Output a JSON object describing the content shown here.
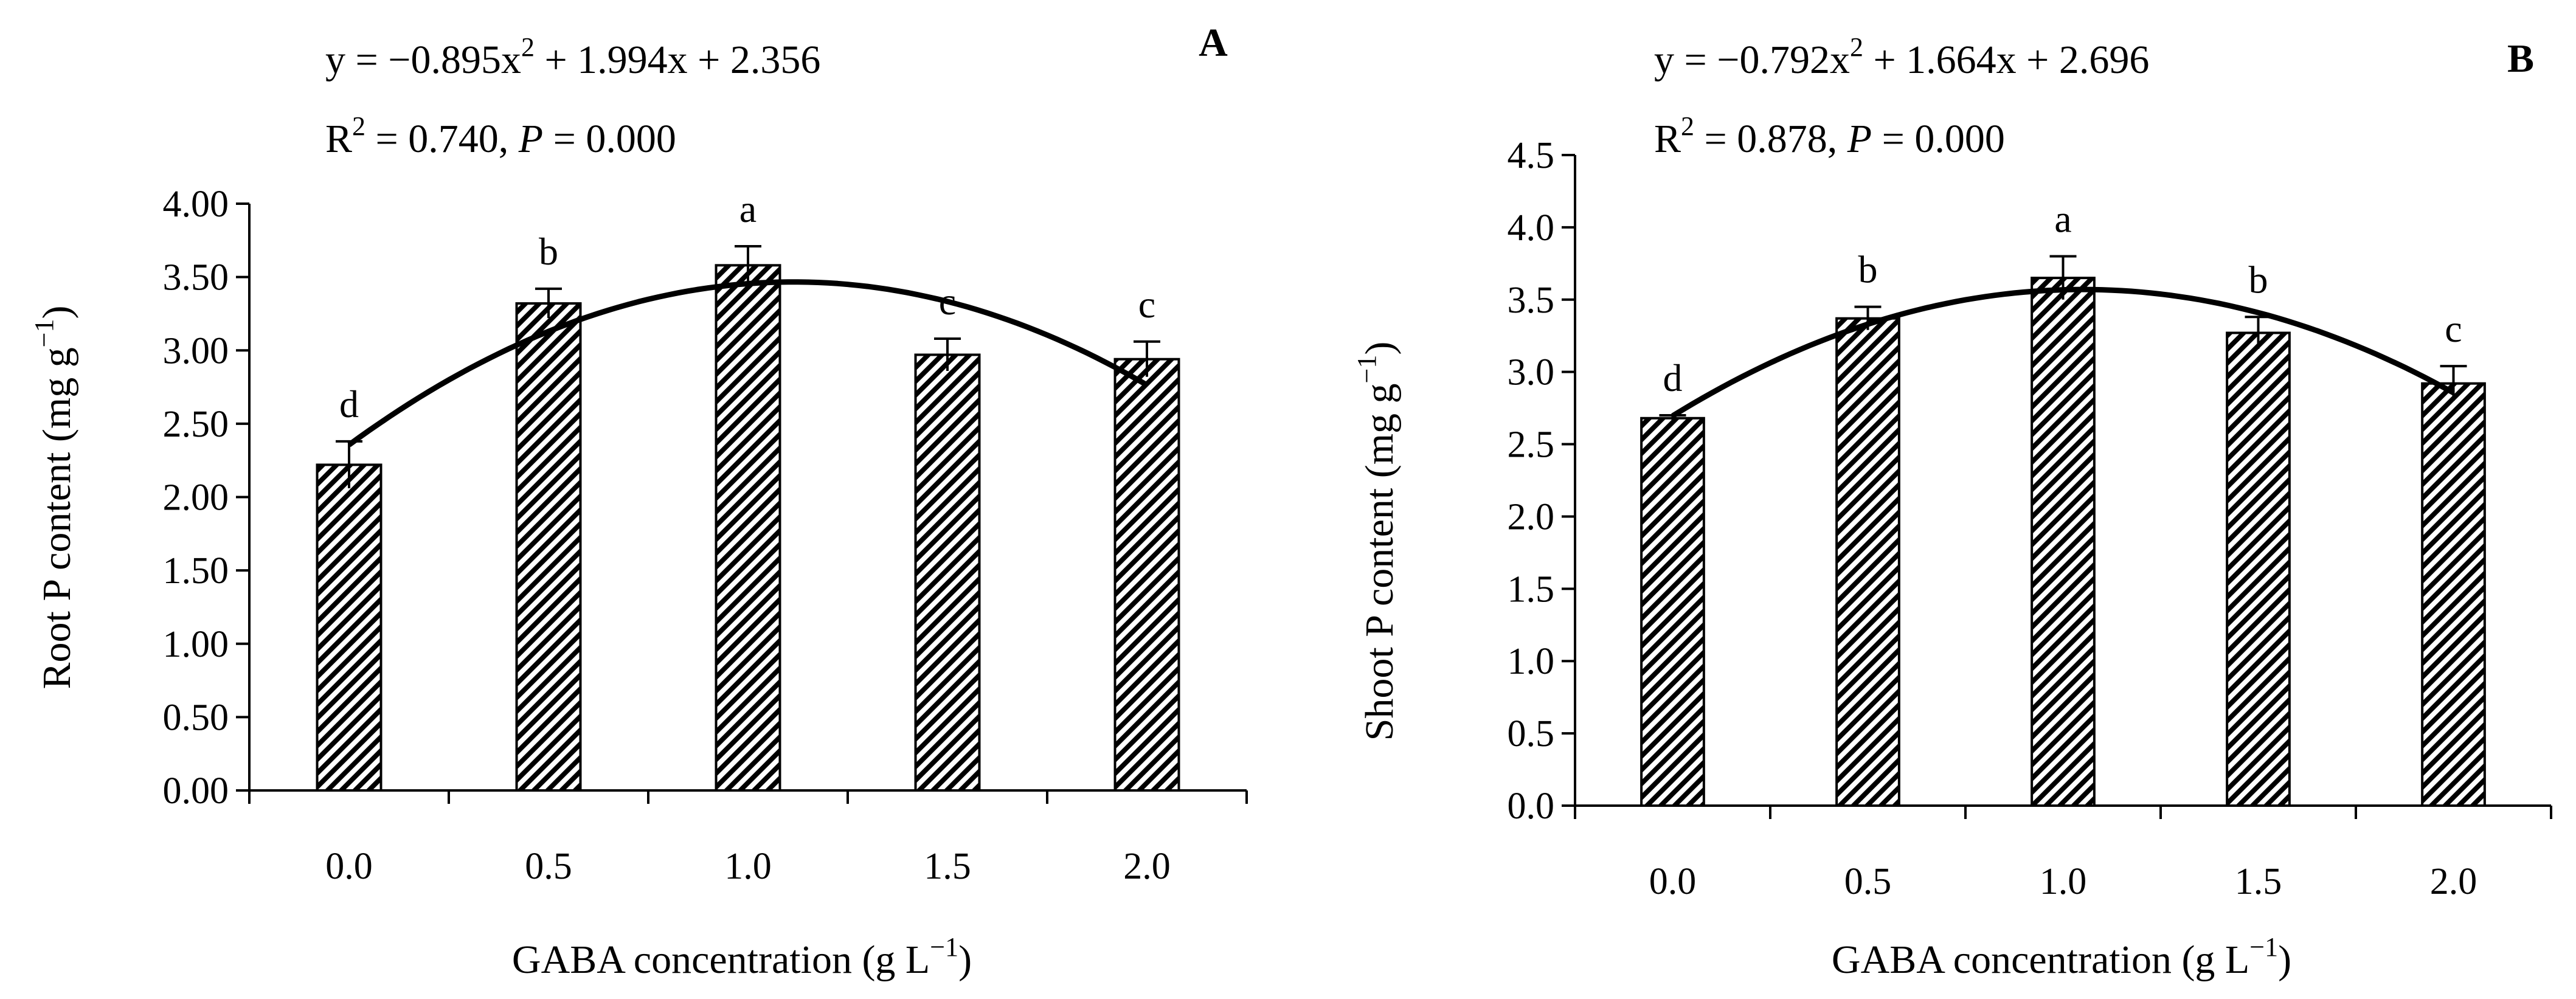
{
  "chart_data": [
    {
      "type": "bar",
      "panel_label": "A",
      "categories": [
        "0.0",
        "0.5",
        "1.0",
        "1.5",
        "2.0"
      ],
      "values": [
        2.22,
        3.32,
        3.58,
        2.97,
        2.94
      ],
      "errors": [
        0.16,
        0.1,
        0.13,
        0.11,
        0.12
      ],
      "significance": [
        "d",
        "b",
        "a",
        "c",
        "c"
      ],
      "ylabel": "Root P content (mg g",
      "ylabel_sup": "−1",
      "ylabel_end": ")",
      "xlabel": "GABA concentration (g L",
      "xlabel_sup": "−1",
      "xlabel_end": ")",
      "ylim": [
        0,
        4
      ],
      "yticks": [
        "0.00",
        "0.50",
        "1.00",
        "1.50",
        "2.00",
        "2.50",
        "3.00",
        "3.50",
        "4.00"
      ],
      "fit": {
        "a": -0.895,
        "b": 1.994,
        "c": 2.356
      },
      "equation_parts": [
        "y = −0.895x",
        "2",
        " + 1.994x + 2.356"
      ],
      "r2_parts": [
        "R",
        "2",
        " = 0.740, ",
        "P",
        " = 0.000"
      ],
      "pattern": "diagonal-hatch"
    },
    {
      "type": "bar",
      "panel_label": "B",
      "categories": [
        "0.0",
        "0.5",
        "1.0",
        "1.5",
        "2.0"
      ],
      "values": [
        2.68,
        3.37,
        3.65,
        3.27,
        2.92
      ],
      "errors": [
        0.02,
        0.08,
        0.15,
        0.11,
        0.12
      ],
      "significance": [
        "d",
        "b",
        "a",
        "b",
        "c"
      ],
      "ylabel": "Shoot P content (mg g",
      "ylabel_sup": "−1",
      "ylabel_end": ")",
      "xlabel": "GABA concentration (g L",
      "xlabel_sup": "−1",
      "xlabel_end": ")",
      "ylim": [
        0,
        4.5
      ],
      "yticks": [
        "0.0",
        "0.5",
        "1.0",
        "1.5",
        "2.0",
        "2.5",
        "3.0",
        "3.5",
        "4.0",
        "4.5"
      ],
      "fit": {
        "a": -0.792,
        "b": 1.664,
        "c": 2.696
      },
      "equation_parts": [
        "y = −0.792x",
        "2",
        " + 1.664x + 2.696"
      ],
      "r2_parts": [
        "R",
        "2",
        " = 0.878, ",
        "P",
        " = 0.000"
      ],
      "pattern": "diagonal-hatch"
    }
  ]
}
